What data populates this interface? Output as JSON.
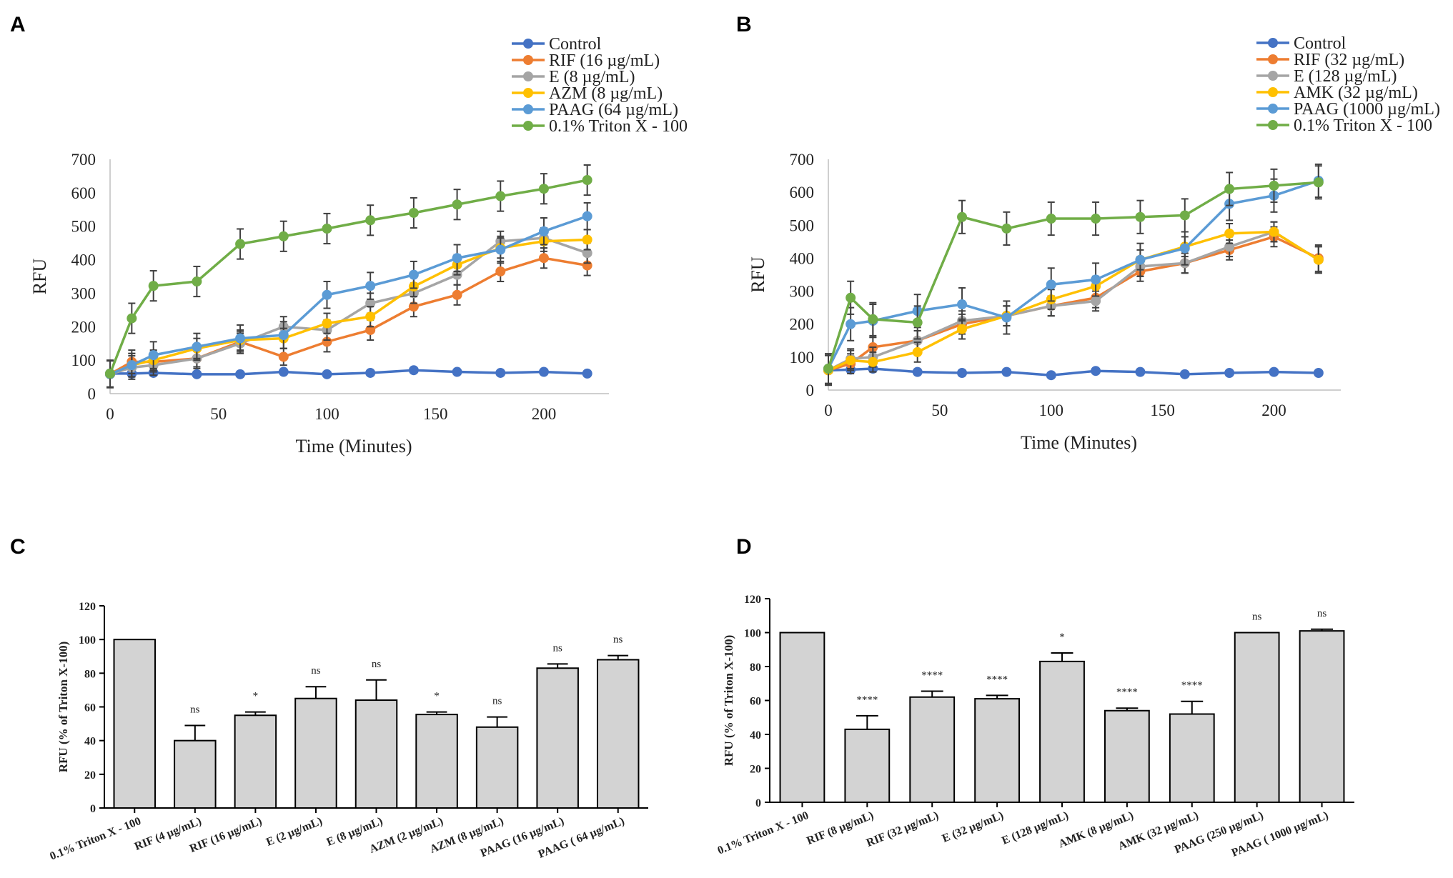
{
  "chart_data": [
    {
      "panel": "A",
      "type": "line",
      "xlabel": "Time (Minutes)",
      "ylabel": "RFU",
      "xlim": [
        0,
        230
      ],
      "ylim": [
        0,
        700
      ],
      "xticks": [
        "0",
        "50",
        "100",
        "150",
        "200"
      ],
      "yticks": [
        "0",
        "100",
        "200",
        "300",
        "400",
        "500",
        "600",
        "700"
      ],
      "legend_position": "top-right",
      "x": [
        0,
        10,
        20,
        40,
        60,
        80,
        100,
        120,
        140,
        160,
        180,
        200,
        220
      ],
      "series": [
        {
          "name": "Control",
          "color": "#4472c4",
          "values": [
            60,
            60,
            62,
            58,
            58,
            65,
            58,
            62,
            70,
            65,
            62,
            65,
            60
          ],
          "errors": [
            8,
            8,
            8,
            6,
            6,
            6,
            6,
            6,
            6,
            6,
            6,
            6,
            6
          ]
        },
        {
          "name": "RIF (16 µg/mL)",
          "color": "#ed7d31",
          "values": [
            58,
            95,
            95,
            105,
            155,
            110,
            155,
            190,
            260,
            295,
            365,
            405,
            383
          ],
          "errors": [
            40,
            35,
            30,
            25,
            30,
            25,
            30,
            30,
            30,
            30,
            30,
            30,
            30
          ]
        },
        {
          "name": "E (8 µg/mL)",
          "color": "#a5a5a5",
          "values": [
            58,
            78,
            85,
            105,
            150,
            200,
            190,
            270,
            300,
            355,
            455,
            465,
            420
          ],
          "errors": [
            40,
            35,
            30,
            30,
            30,
            30,
            30,
            30,
            30,
            30,
            30,
            30,
            30
          ]
        },
        {
          "name": "AZM (8 µg/mL)",
          "color": "#ffc000",
          "values": [
            58,
            85,
            100,
            135,
            160,
            165,
            210,
            230,
            320,
            385,
            435,
            455,
            460
          ],
          "errors": [
            40,
            35,
            30,
            30,
            30,
            30,
            30,
            30,
            30,
            30,
            30,
            30,
            30
          ]
        },
        {
          "name": "PAAG (64 µg/mL)",
          "color": "#5b9bd5",
          "values": [
            58,
            85,
            115,
            140,
            165,
            175,
            295,
            322,
            355,
            405,
            430,
            485,
            530
          ],
          "errors": [
            40,
            35,
            40,
            40,
            40,
            40,
            40,
            40,
            40,
            40,
            40,
            40,
            40
          ]
        },
        {
          "name": "0.1% Triton X - 100",
          "color": "#70ad47",
          "values": [
            60,
            225,
            322,
            335,
            447,
            470,
            493,
            518,
            540,
            565,
            590,
            612,
            638
          ],
          "errors": [
            40,
            45,
            45,
            45,
            45,
            45,
            45,
            45,
            45,
            45,
            45,
            45,
            45
          ]
        }
      ]
    },
    {
      "panel": "B",
      "type": "line",
      "xlabel": "Time (Minutes)",
      "ylabel": "RFU",
      "xlim": [
        0,
        230
      ],
      "ylim": [
        0,
        700
      ],
      "xticks": [
        "0",
        "50",
        "100",
        "150",
        "200"
      ],
      "yticks": [
        "0",
        "100",
        "200",
        "300",
        "400",
        "500",
        "600",
        "700"
      ],
      "legend_position": "top-right",
      "x": [
        0,
        10,
        20,
        40,
        60,
        80,
        100,
        120,
        140,
        160,
        180,
        200,
        220
      ],
      "series": [
        {
          "name": "Control",
          "color": "#4472c4",
          "values": [
            60,
            62,
            65,
            55,
            52,
            55,
            45,
            58,
            55,
            48,
            52,
            55,
            52
          ],
          "errors": [
            8,
            8,
            8,
            6,
            6,
            6,
            6,
            6,
            6,
            6,
            6,
            6,
            6
          ]
        },
        {
          "name": "RIF (32 µg/mL)",
          "color": "#ed7d31",
          "values": [
            60,
            80,
            130,
            150,
            200,
            225,
            255,
            280,
            360,
            385,
            425,
            465,
            400
          ],
          "errors": [
            45,
            30,
            30,
            30,
            30,
            30,
            30,
            30,
            30,
            30,
            30,
            30,
            40
          ]
        },
        {
          "name": "E (128 µg/mL)",
          "color": "#a5a5a5",
          "values": [
            60,
            95,
            100,
            150,
            210,
            225,
            255,
            270,
            375,
            385,
            435,
            480,
            395
          ],
          "errors": [
            45,
            30,
            30,
            30,
            30,
            30,
            30,
            30,
            30,
            30,
            30,
            30,
            40
          ]
        },
        {
          "name": "AMK (32 µg/mL)",
          "color": "#ffc000",
          "values": [
            60,
            90,
            85,
            115,
            185,
            225,
            275,
            315,
            395,
            435,
            475,
            480,
            395
          ],
          "errors": [
            45,
            30,
            30,
            30,
            30,
            30,
            30,
            30,
            30,
            30,
            30,
            30,
            40
          ]
        },
        {
          "name": "PAAG (1000 µg/mL)",
          "color": "#5b9bd5",
          "values": [
            65,
            200,
            210,
            240,
            260,
            220,
            320,
            335,
            395,
            430,
            565,
            590,
            635
          ],
          "errors": [
            45,
            50,
            50,
            50,
            50,
            50,
            50,
            50,
            50,
            50,
            50,
            50,
            50
          ]
        },
        {
          "name": "0.1% Triton X - 100",
          "color": "#70ad47",
          "values": [
            65,
            280,
            215,
            205,
            525,
            490,
            520,
            520,
            525,
            530,
            610,
            620,
            630
          ],
          "errors": [
            45,
            50,
            50,
            50,
            50,
            50,
            50,
            50,
            50,
            50,
            50,
            50,
            50
          ]
        }
      ]
    },
    {
      "panel": "C",
      "type": "bar",
      "ylabel": "RFU (% of Triton X-100)",
      "ylim": [
        0,
        120
      ],
      "yticks": [
        "0",
        "20",
        "40",
        "60",
        "80",
        "100",
        "120"
      ],
      "categories": [
        "0.1% Triton X - 100",
        "RIF (4 µg/mL)",
        "RIF (16 µg/mL)",
        "E (2 µg/mL)",
        "E (8 µg/mL)",
        "AZM (2 µg/mL)",
        "AZM (8 µg/mL)",
        "PAAG (16 µg/mL)",
        "PAAG ( 64 µg/mL)"
      ],
      "values": [
        100,
        40,
        55,
        65,
        64,
        55.5,
        48,
        83,
        88
      ],
      "errors": [
        0,
        9,
        2,
        7,
        12,
        1.5,
        6,
        2.5,
        2.5
      ],
      "significance": [
        "",
        "ns",
        "*",
        "ns",
        "ns",
        "*",
        "ns",
        "ns",
        "ns"
      ],
      "bar_color": "#d3d3d3"
    },
    {
      "panel": "D",
      "type": "bar",
      "ylabel": "RFU (% of Triton X-100)",
      "ylim": [
        0,
        120
      ],
      "yticks": [
        "0",
        "20",
        "40",
        "60",
        "80",
        "100",
        "120"
      ],
      "categories": [
        "0.1% Triton X - 100",
        "RIF (8 µg/mL)",
        "RIF (32 µg/mL)",
        "E (32 µg/mL)",
        "E (128 µg/mL)",
        "AMK (8 µg/mL)",
        "AMK (32 µg/mL)",
        "PAAG (250 µg/mL)",
        "PAAG ( 1000 µg/mL)"
      ],
      "values": [
        100,
        43,
        62,
        61,
        83,
        54,
        52,
        100,
        101
      ],
      "errors": [
        0,
        8,
        3.5,
        2,
        5,
        1.5,
        7.5,
        0,
        1
      ],
      "significance": [
        "",
        "****",
        "****",
        "****",
        "*",
        "****",
        "****",
        "ns",
        "ns"
      ],
      "bar_color": "#d3d3d3"
    }
  ]
}
